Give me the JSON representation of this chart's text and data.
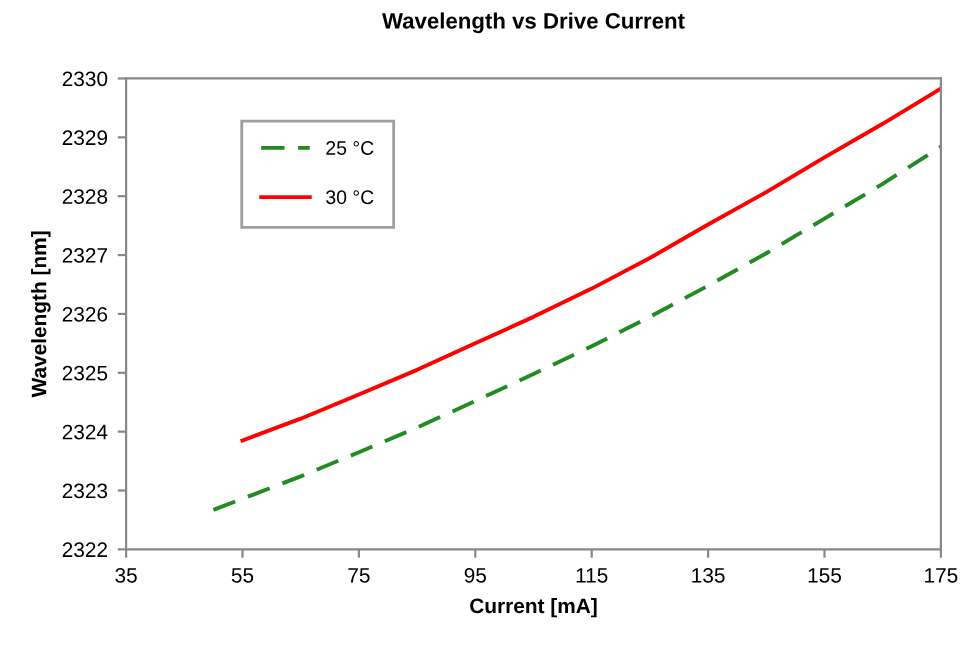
{
  "chart_data": {
    "type": "line",
    "title": "Wavelength vs Drive Current",
    "xlabel": "Current [mA]",
    "ylabel": "Wavelength [nm]",
    "series": [
      {
        "name": "25 °C",
        "color": "#228b22",
        "line_style": "dashed",
        "x": [
          50,
          55,
          65,
          75,
          85,
          95,
          105,
          115,
          125,
          135,
          145,
          155,
          165,
          175
        ],
        "values": [
          2322.67,
          2322.86,
          2323.24,
          2323.65,
          2324.07,
          2324.52,
          2324.98,
          2325.45,
          2325.95,
          2326.48,
          2327.03,
          2327.62,
          2328.21,
          2328.84
        ]
      },
      {
        "name": "30 °C",
        "color": "#ff0000",
        "line_style": "solid",
        "x": [
          55,
          65,
          75,
          85,
          95,
          105,
          115,
          125,
          135,
          145,
          155,
          165,
          175
        ],
        "values": [
          2323.85,
          2324.22,
          2324.63,
          2325.05,
          2325.5,
          2325.95,
          2326.43,
          2326.95,
          2327.52,
          2328.07,
          2328.66,
          2329.23,
          2329.83
        ]
      }
    ],
    "xlim": [
      35,
      175
    ],
    "xticks": [
      35,
      55,
      75,
      95,
      115,
      135,
      155,
      175
    ],
    "ylim": [
      2322,
      2330
    ],
    "yticks": [
      2322,
      2323,
      2324,
      2325,
      2326,
      2327,
      2328,
      2329,
      2330
    ],
    "grid": false,
    "legend": "top left",
    "marker": "none"
  }
}
